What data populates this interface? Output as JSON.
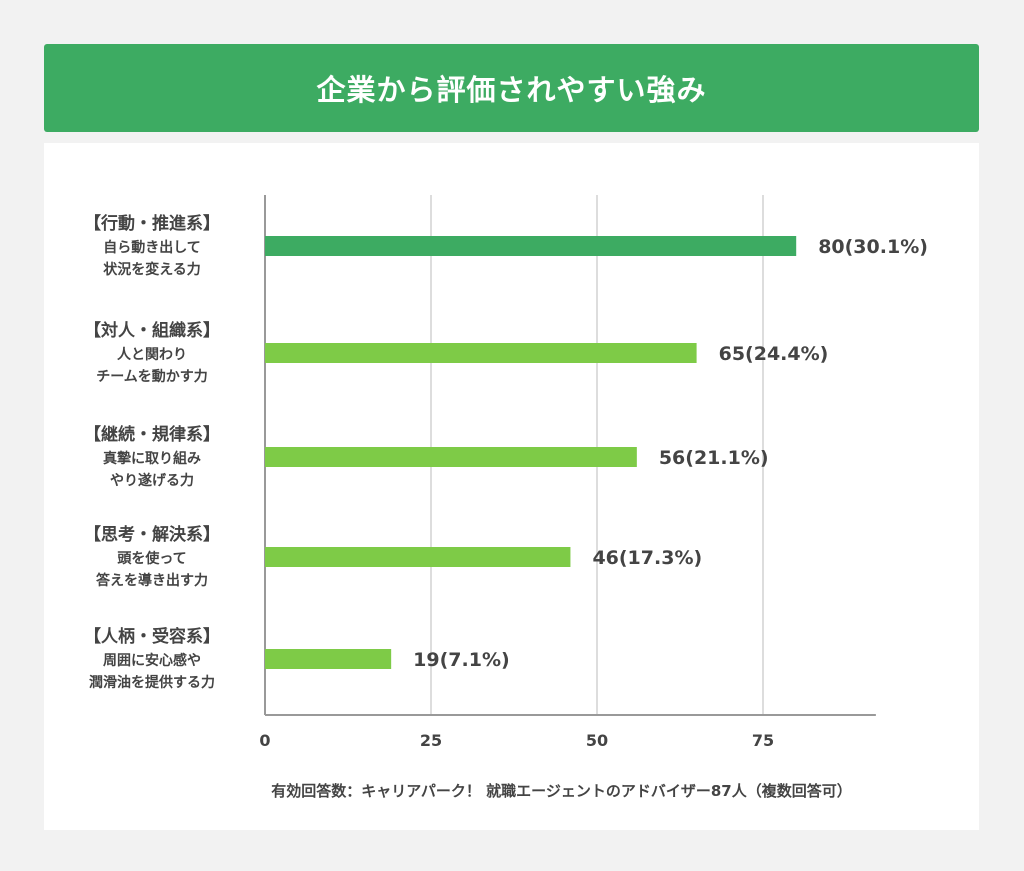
{
  "chart_data": {
    "type": "bar",
    "orientation": "horizontal",
    "title": "企業から評価されやすい強み",
    "categories": [
      {
        "title": "【行動・推進系】",
        "sub": [
          "自ら動き出して",
          "状況を変える力"
        ]
      },
      {
        "title": "【対人・組織系】",
        "sub": [
          "人と関わり",
          "チームを動かす力"
        ]
      },
      {
        "title": "【継続・規律系】",
        "sub": [
          "真摯に取り組み",
          "やり遂げる力"
        ]
      },
      {
        "title": "【思考・解決系】",
        "sub": [
          "頭を使って",
          "答えを導き出す力"
        ]
      },
      {
        "title": "【人柄・受容系】",
        "sub": [
          "周囲に安心感や",
          "潤滑油を提供する力"
        ]
      }
    ],
    "values": [
      80,
      65,
      56,
      46,
      19
    ],
    "data_labels": [
      "80(30.1%)",
      "65(24.4%)",
      "56(21.1%)",
      "46(17.3%)",
      "19(7.1%)"
    ],
    "xlim": [
      0,
      92
    ],
    "xticks": [
      0,
      25,
      50,
      75
    ],
    "grid": true,
    "colors": {
      "highlight": "#3dab62",
      "default": "#7ecb47",
      "grid": "#dddddd",
      "axis": "#999999",
      "header": "#3dab62"
    },
    "note": "有効回答数：キャリアパーク！ 就職エージェントのアドバイザー87人（複数回答可）"
  }
}
